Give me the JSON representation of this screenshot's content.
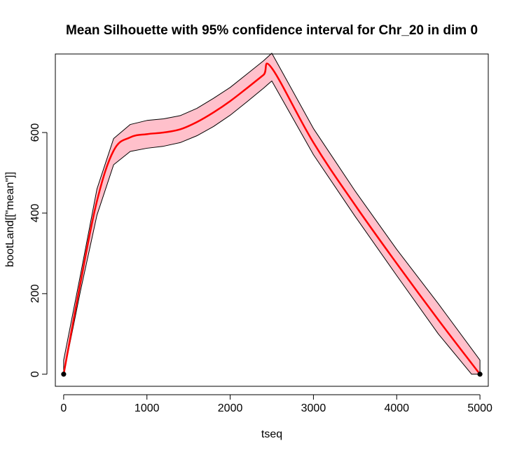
{
  "chart_data": {
    "type": "line",
    "title": "Mean Silhouette with 95% confidence interval for Chr_20 in dim 0",
    "xlabel": "tseq",
    "ylabel": "bootLand[[\"mean\"]]",
    "xlim": [
      -100,
      5100
    ],
    "ylim": [
      -30,
      795
    ],
    "x_ticks": [
      0,
      1000,
      2000,
      3000,
      4000,
      5000
    ],
    "x_tick_labels": [
      "0",
      "1000",
      "2000",
      "3000",
      "4000",
      "5000"
    ],
    "y_ticks": [
      0,
      200,
      400,
      600
    ],
    "y_tick_labels": [
      "0",
      "200",
      "400",
      "600"
    ],
    "grid": false,
    "colors": {
      "mean_line": "#ff0000",
      "band_fill": "#ffc0cb",
      "band_border": "#000000",
      "endpoints": "#000000"
    },
    "series": [
      {
        "name": "mean",
        "x": [
          0,
          200,
          400,
          600,
          800,
          1000,
          1200,
          1400,
          1600,
          1800,
          2000,
          2200,
          2400,
          2500,
          3000,
          3500,
          4000,
          4500,
          5000
        ],
        "y": [
          0,
          225,
          430,
          555,
          588,
          596,
          600,
          608,
          626,
          650,
          678,
          710,
          743,
          760,
          575,
          420,
          275,
          135,
          0
        ]
      },
      {
        "name": "upper",
        "x": [
          0,
          200,
          400,
          600,
          800,
          1000,
          1200,
          1400,
          1600,
          1800,
          2000,
          2200,
          2400,
          2500,
          3000,
          3500,
          4000,
          4500,
          5000
        ],
        "y": [
          35,
          245,
          460,
          585,
          620,
          630,
          634,
          642,
          660,
          685,
          712,
          745,
          778,
          797,
          610,
          455,
          310,
          175,
          35
        ]
      },
      {
        "name": "lower",
        "x": [
          0,
          200,
          400,
          600,
          800,
          1000,
          1200,
          1400,
          1600,
          1800,
          2000,
          2200,
          2400,
          2500,
          3000,
          3500,
          4000,
          4500,
          4900,
          5000
        ],
        "y": [
          0,
          205,
          395,
          520,
          553,
          561,
          566,
          575,
          592,
          615,
          643,
          676,
          710,
          728,
          545,
          392,
          245,
          100,
          0,
          0
        ]
      }
    ],
    "endpoints": [
      {
        "x": 0,
        "y": 0
      },
      {
        "x": 5000,
        "y": 0
      }
    ]
  }
}
